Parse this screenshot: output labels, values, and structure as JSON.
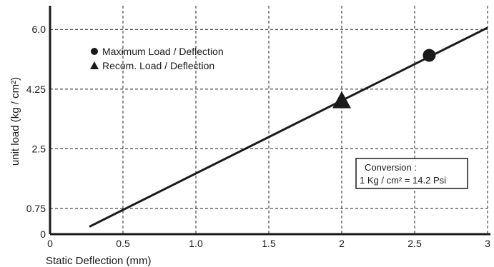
{
  "chart_data": {
    "type": "line",
    "xlabel": "Static Deflection (mm)",
    "ylabel": "unit load (kg / cm²)",
    "xlim": [
      0,
      3
    ],
    "ylim": [
      0,
      7
    ],
    "x_ticks": [
      0,
      0.5,
      1.0,
      1.5,
      2,
      2.5,
      3
    ],
    "x_tick_labels": [
      "0",
      "0.5",
      "1.0",
      "1.5",
      "2",
      "2.5",
      "3"
    ],
    "y_ticks": [
      0,
      0.75,
      2.5,
      4.25,
      6.0
    ],
    "y_tick_labels": [
      "0",
      "0.75",
      "2.5",
      "4.25",
      "6.0"
    ],
    "grid": true,
    "line": {
      "x": [
        0.27,
        3.0
      ],
      "y": [
        0.22,
        6.05
      ]
    },
    "series": [
      {
        "name": "Maximum Load / Deflection",
        "marker": "circle",
        "x": [
          2.6
        ],
        "y": [
          5.24
        ]
      },
      {
        "name": "Recom. Load / Deflection",
        "marker": "triangle",
        "x": [
          2.0
        ],
        "y": [
          3.92
        ]
      }
    ],
    "legend_position": "top-left",
    "annotation": {
      "line1": "Conversion :",
      "line2": "1 Kg / cm² = 14.2 Psi"
    }
  }
}
